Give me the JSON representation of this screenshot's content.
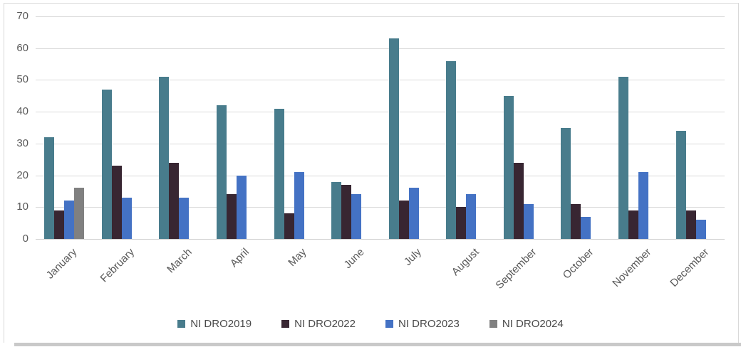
{
  "chart_data": {
    "type": "bar",
    "title": "",
    "xlabel": "",
    "ylabel": "",
    "categories": [
      "January",
      "February",
      "March",
      "April",
      "May",
      "June",
      "July",
      "August",
      "September",
      "October",
      "November",
      "December"
    ],
    "series": [
      {
        "name": "NI DRO2019",
        "color": "#487C8C",
        "values": [
          32,
          47,
          51,
          42,
          41,
          18,
          63,
          56,
          45,
          35,
          51,
          34
        ]
      },
      {
        "name": "NI DRO2022",
        "color": "#382632",
        "values": [
          9,
          23,
          24,
          14,
          8,
          17,
          12,
          10,
          24,
          11,
          9,
          9
        ]
      },
      {
        "name": "NI DRO2023",
        "color": "#4472C4",
        "values": [
          12,
          13,
          13,
          20,
          21,
          14,
          16,
          14,
          11,
          7,
          21,
          6
        ]
      },
      {
        "name": "NI DRO2024",
        "color": "#808080",
        "values": [
          16,
          null,
          null,
          null,
          null,
          null,
          null,
          null,
          null,
          null,
          null,
          null
        ]
      }
    ],
    "ylim": [
      0,
      70
    ],
    "ytick_interval": 10,
    "y_tick_labels": [
      "0",
      "10",
      "20",
      "30",
      "40",
      "50",
      "60",
      "70"
    ],
    "grid": true,
    "grid_color": "#D9D9D9",
    "axis_text_color": "#595959",
    "legend_position": "bottom",
    "legend_entries": [
      "NI DRO2019",
      "NI DRO2022",
      "NI DRO2023",
      "NI DRO2024"
    ]
  }
}
